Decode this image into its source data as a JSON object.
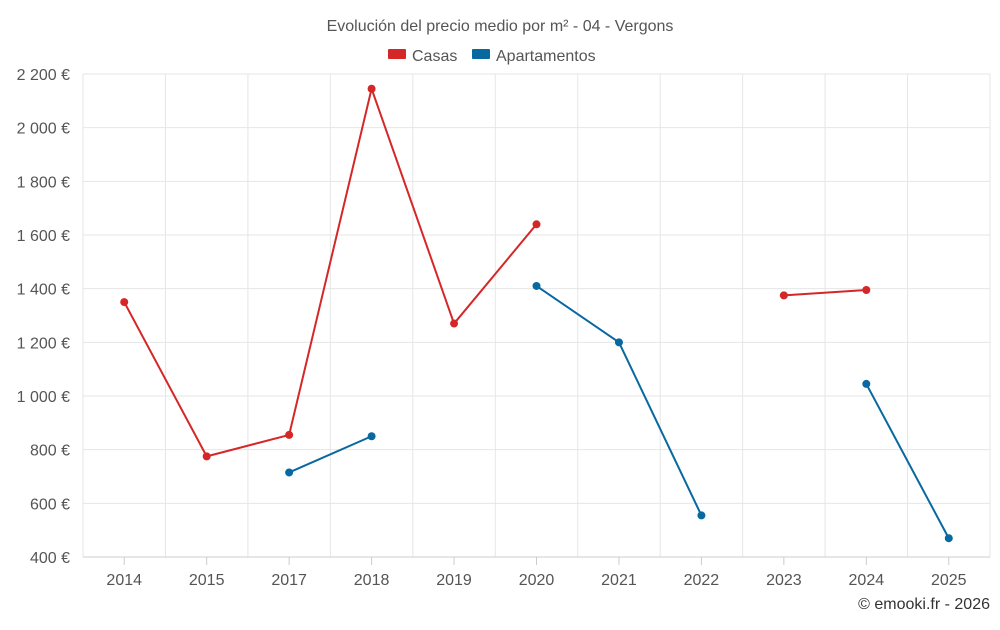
{
  "chart_data": {
    "type": "line",
    "title": "Evolución del precio medio por m² - 04 - Vergons",
    "categories": [
      "2014",
      "2015",
      "2017",
      "2018",
      "2019",
      "2020",
      "2021",
      "2022",
      "2023",
      "2024",
      "2025"
    ],
    "ylim": [
      400,
      2200
    ],
    "yticks": [
      400,
      600,
      800,
      1000,
      1200,
      1400,
      1600,
      1800,
      2000,
      2200
    ],
    "ytick_labels": [
      "400 €",
      "600 €",
      "800 €",
      "1 000 €",
      "1 200 €",
      "1 400 €",
      "1 600 €",
      "1 800 €",
      "2 000 €",
      "2 200 €"
    ],
    "grid": true,
    "legend_position": "top-center",
    "series": [
      {
        "name": "Casas",
        "color": "#d62728",
        "values": [
          1350,
          775,
          855,
          2145,
          1270,
          1640,
          null,
          null,
          1375,
          1395,
          null
        ]
      },
      {
        "name": "Apartamentos",
        "color": "#0868a0",
        "values": [
          null,
          null,
          715,
          850,
          null,
          1410,
          1200,
          555,
          null,
          1045,
          470
        ]
      }
    ],
    "credit": "© emooki.fr - 2026"
  }
}
